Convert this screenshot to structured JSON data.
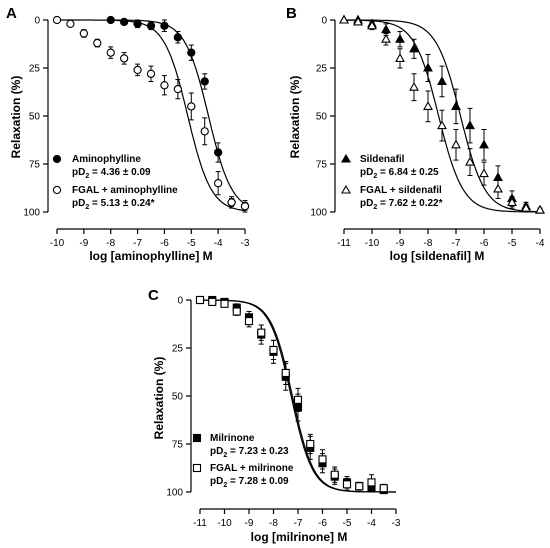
{
  "chart_data": [
    {
      "type": "scatter",
      "panel_label": "A",
      "xlabel": "log [aminophylline] M",
      "ylabel": "Relaxation (%)",
      "xlim": [
        -10,
        -3
      ],
      "ylim": [
        0,
        100
      ],
      "y_inverted": true,
      "x_ticks": [
        -10,
        -9,
        -8,
        -7,
        -6,
        -5,
        -4,
        -3
      ],
      "y_ticks": [
        0,
        25,
        50,
        75,
        100
      ],
      "legend_position": "bottom-left",
      "series": [
        {
          "name": "Aminophylline",
          "subtitle": "pD2 = 4.36 ± 0.09",
          "marker": "filled-circle",
          "pD2": 4.36,
          "points": [
            {
              "x": -8,
              "y": 0,
              "err": 1
            },
            {
              "x": -7.5,
              "y": 1,
              "err": 1
            },
            {
              "x": -7,
              "y": 2,
              "err": 2
            },
            {
              "x": -6.5,
              "y": 3,
              "err": 2
            },
            {
              "x": -6,
              "y": 3,
              "err": 3
            },
            {
              "x": -5.5,
              "y": 9,
              "err": 3
            },
            {
              "x": -5,
              "y": 17,
              "err": 4
            },
            {
              "x": -4.5,
              "y": 32,
              "err": 4
            },
            {
              "x": -4,
              "y": 69,
              "err": 5
            },
            {
              "x": -3.5,
              "y": 95,
              "err": 2
            },
            {
              "x": -3,
              "y": 97,
              "err": 2
            }
          ]
        },
        {
          "name": "FGAL + aminophylline",
          "subtitle": "pD2 = 5.13 ± 0.24*",
          "marker": "open-circle",
          "pD2": 5.13,
          "points": [
            {
              "x": -10,
              "y": 0,
              "err": 1
            },
            {
              "x": -9.5,
              "y": 2,
              "err": 1
            },
            {
              "x": -9,
              "y": 7,
              "err": 2
            },
            {
              "x": -8.5,
              "y": 12,
              "err": 2
            },
            {
              "x": -8,
              "y": 17,
              "err": 3
            },
            {
              "x": -7.5,
              "y": 20,
              "err": 3
            },
            {
              "x": -7,
              "y": 26,
              "err": 3
            },
            {
              "x": -6.5,
              "y": 28,
              "err": 4
            },
            {
              "x": -6,
              "y": 34,
              "err": 5
            },
            {
              "x": -5.5,
              "y": 36,
              "err": 5
            },
            {
              "x": -5,
              "y": 45,
              "err": 7
            },
            {
              "x": -4.5,
              "y": 58,
              "err": 7
            },
            {
              "x": -4,
              "y": 85,
              "err": 6
            },
            {
              "x": -3.5,
              "y": 95,
              "err": 3
            },
            {
              "x": -3,
              "y": 97,
              "err": 3
            }
          ]
        }
      ]
    },
    {
      "type": "scatter",
      "panel_label": "B",
      "xlabel": "log [sildenafil] M",
      "ylabel": "Relaxation (%)",
      "xlim": [
        -11,
        -4
      ],
      "ylim": [
        0,
        100
      ],
      "y_inverted": true,
      "x_ticks": [
        -11,
        -10,
        -9,
        -8,
        -7,
        -6,
        -5,
        -4
      ],
      "y_ticks": [
        0,
        25,
        50,
        75,
        100
      ],
      "legend_position": "bottom-left",
      "series": [
        {
          "name": "Sildenafil",
          "subtitle": "pD2 = 6.84 ± 0.25",
          "marker": "filled-triangle",
          "pD2": 6.84,
          "points": [
            {
              "x": -11,
              "y": 0,
              "err": 1
            },
            {
              "x": -10.5,
              "y": 0,
              "err": 1
            },
            {
              "x": -10,
              "y": 2,
              "err": 2
            },
            {
              "x": -9.5,
              "y": 5,
              "err": 3
            },
            {
              "x": -9,
              "y": 10,
              "err": 4
            },
            {
              "x": -8.5,
              "y": 15,
              "err": 5
            },
            {
              "x": -8,
              "y": 25,
              "err": 7
            },
            {
              "x": -7.5,
              "y": 32,
              "err": 8
            },
            {
              "x": -7,
              "y": 45,
              "err": 9
            },
            {
              "x": -6.5,
              "y": 55,
              "err": 9
            },
            {
              "x": -6,
              "y": 65,
              "err": 8
            },
            {
              "x": -5.5,
              "y": 82,
              "err": 6
            },
            {
              "x": -5,
              "y": 93,
              "err": 4
            },
            {
              "x": -4.5,
              "y": 97,
              "err": 2
            },
            {
              "x": -4,
              "y": 99,
              "err": 1
            }
          ]
        },
        {
          "name": "FGAL + sildenafil",
          "subtitle": "pD2 = 7.62 ± 0.22*",
          "marker": "open-triangle",
          "pD2": 7.62,
          "points": [
            {
              "x": -11,
              "y": 0,
              "err": 1
            },
            {
              "x": -10.5,
              "y": 1,
              "err": 1
            },
            {
              "x": -10,
              "y": 3,
              "err": 2
            },
            {
              "x": -9.5,
              "y": 10,
              "err": 3
            },
            {
              "x": -9,
              "y": 20,
              "err": 5
            },
            {
              "x": -8.5,
              "y": 35,
              "err": 7
            },
            {
              "x": -8,
              "y": 45,
              "err": 8
            },
            {
              "x": -7.5,
              "y": 55,
              "err": 8
            },
            {
              "x": -7,
              "y": 65,
              "err": 8
            },
            {
              "x": -6.5,
              "y": 74,
              "err": 7
            },
            {
              "x": -6,
              "y": 80,
              "err": 6
            },
            {
              "x": -5.5,
              "y": 88,
              "err": 5
            },
            {
              "x": -5,
              "y": 95,
              "err": 3
            },
            {
              "x": -4.5,
              "y": 98,
              "err": 2
            },
            {
              "x": -4,
              "y": 99,
              "err": 1
            }
          ]
        }
      ]
    },
    {
      "type": "scatter",
      "panel_label": "C",
      "xlabel": "log [milrinone] M",
      "ylabel": "Relaxation (%)",
      "xlim": [
        -11,
        -3
      ],
      "ylim": [
        0,
        100
      ],
      "y_inverted": true,
      "x_ticks": [
        -11,
        -10,
        -9,
        -8,
        -7,
        -6,
        -5,
        -4,
        -3
      ],
      "y_ticks": [
        0,
        25,
        50,
        75,
        100
      ],
      "legend_position": "bottom-left",
      "series": [
        {
          "name": "Milrinone",
          "subtitle": "pD2 = 7.23 ± 0.23",
          "marker": "filled-square",
          "pD2": 7.23,
          "points": [
            {
              "x": -11,
              "y": 0,
              "err": 1
            },
            {
              "x": -10.5,
              "y": 0,
              "err": 1
            },
            {
              "x": -10,
              "y": 1,
              "err": 1
            },
            {
              "x": -9.5,
              "y": 4,
              "err": 2
            },
            {
              "x": -9,
              "y": 9,
              "err": 3
            },
            {
              "x": -8.5,
              "y": 18,
              "err": 5
            },
            {
              "x": -8,
              "y": 27,
              "err": 6
            },
            {
              "x": -7.5,
              "y": 40,
              "err": 7
            },
            {
              "x": -7,
              "y": 56,
              "err": 7
            },
            {
              "x": -6.5,
              "y": 77,
              "err": 6
            },
            {
              "x": -6,
              "y": 85,
              "err": 5
            },
            {
              "x": -5.5,
              "y": 92,
              "err": 4
            },
            {
              "x": -5,
              "y": 95,
              "err": 3
            },
            {
              "x": -4.5,
              "y": 97,
              "err": 2
            },
            {
              "x": -4,
              "y": 98,
              "err": 2
            },
            {
              "x": -3.5,
              "y": 99,
              "err": 1
            }
          ]
        },
        {
          "name": "FGAL + milrinone",
          "subtitle": "pD2 = 7.28 ± 0.09",
          "marker": "open-square",
          "pD2": 7.28,
          "points": [
            {
              "x": -11,
              "y": 0,
              "err": 1
            },
            {
              "x": -10.5,
              "y": 1,
              "err": 1
            },
            {
              "x": -10,
              "y": 2,
              "err": 1
            },
            {
              "x": -9.5,
              "y": 6,
              "err": 2
            },
            {
              "x": -9,
              "y": 11,
              "err": 3
            },
            {
              "x": -8.5,
              "y": 17,
              "err": 4
            },
            {
              "x": -8,
              "y": 26,
              "err": 5
            },
            {
              "x": -7.5,
              "y": 38,
              "err": 6
            },
            {
              "x": -7,
              "y": 52,
              "err": 6
            },
            {
              "x": -6.5,
              "y": 75,
              "err": 5
            },
            {
              "x": -6,
              "y": 83,
              "err": 5
            },
            {
              "x": -5.5,
              "y": 91,
              "err": 4
            },
            {
              "x": -5,
              "y": 96,
              "err": 3
            },
            {
              "x": -4.5,
              "y": 97,
              "err": 2
            },
            {
              "x": -4,
              "y": 95,
              "err": 4
            },
            {
              "x": -3.5,
              "y": 98,
              "err": 2
            }
          ]
        }
      ]
    }
  ]
}
